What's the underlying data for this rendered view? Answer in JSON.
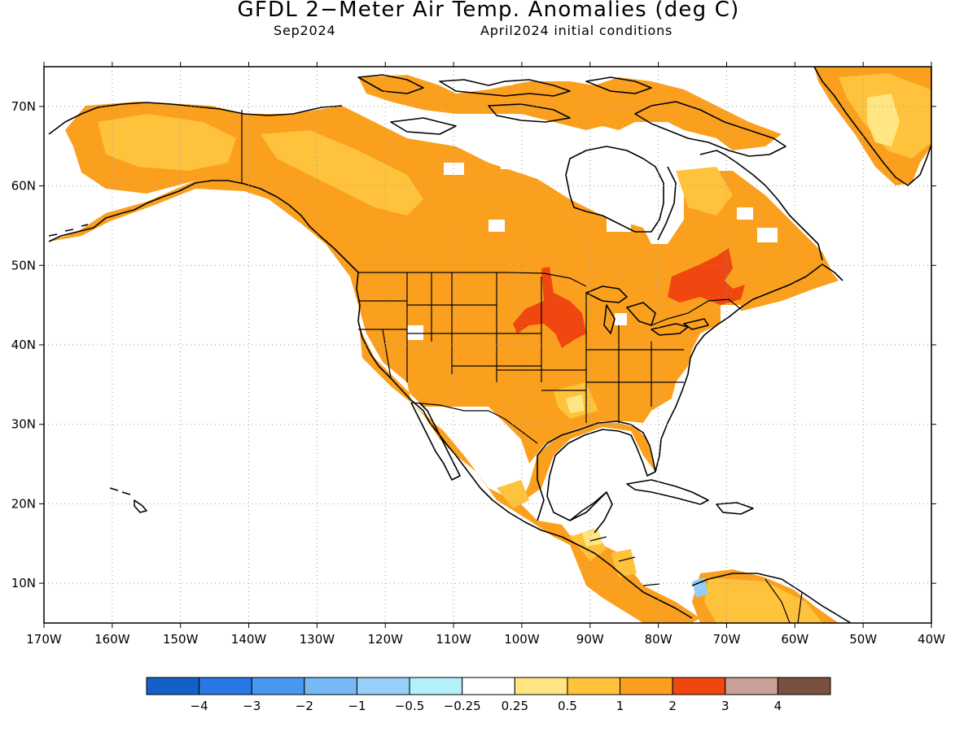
{
  "title": "GFDL 2−Meter Air Temp. Anomalies (deg C)",
  "subtitle_left": "Sep2024",
  "subtitle_right": "April2024 initial conditions",
  "map": {
    "lon_range": [
      -170,
      -40
    ],
    "lat_range": [
      5,
      75
    ],
    "lon_ticks": [
      {
        "value": -170,
        "label": "170W"
      },
      {
        "value": -160,
        "label": "160W"
      },
      {
        "value": -150,
        "label": "150W"
      },
      {
        "value": -140,
        "label": "140W"
      },
      {
        "value": -130,
        "label": "130W"
      },
      {
        "value": -120,
        "label": "120W"
      },
      {
        "value": -110,
        "label": "110W"
      },
      {
        "value": -100,
        "label": "100W"
      },
      {
        "value": -90,
        "label": "90W"
      },
      {
        "value": -80,
        "label": "80W"
      },
      {
        "value": -70,
        "label": "70W"
      },
      {
        "value": -60,
        "label": "60W"
      },
      {
        "value": -50,
        "label": "50W"
      },
      {
        "value": -40,
        "label": "40W"
      }
    ],
    "lat_ticks": [
      {
        "value": 70,
        "label": "70N"
      },
      {
        "value": 60,
        "label": "60N"
      },
      {
        "value": 50,
        "label": "50N"
      },
      {
        "value": 40,
        "label": "40N"
      },
      {
        "value": 30,
        "label": "30N"
      },
      {
        "value": 20,
        "label": "20N"
      },
      {
        "value": 10,
        "label": "10N"
      }
    ],
    "grid": true,
    "grid_style": "dotted"
  },
  "colorbar": {
    "colors": [
      "#1560c8",
      "#2a78e6",
      "#4898f0",
      "#78b8f4",
      "#96d0f8",
      "#b4f0fa",
      "#ffffff",
      "#ffe682",
      "#ffc23c",
      "#faa01e",
      "#f0460f",
      "#c8a096",
      "#7a5040"
    ],
    "labels": [
      "−4",
      "−3",
      "−2",
      "−1",
      "−0.5",
      "−0.25",
      "0.25",
      "0.5",
      "1",
      "2",
      "3",
      "4"
    ]
  },
  "anomaly_colors": {
    "base": "#faa01e",
    "light": "#ffc23c",
    "pale": "#ffe682",
    "strong": "#f0460f",
    "cool": "#96d0f8"
  }
}
